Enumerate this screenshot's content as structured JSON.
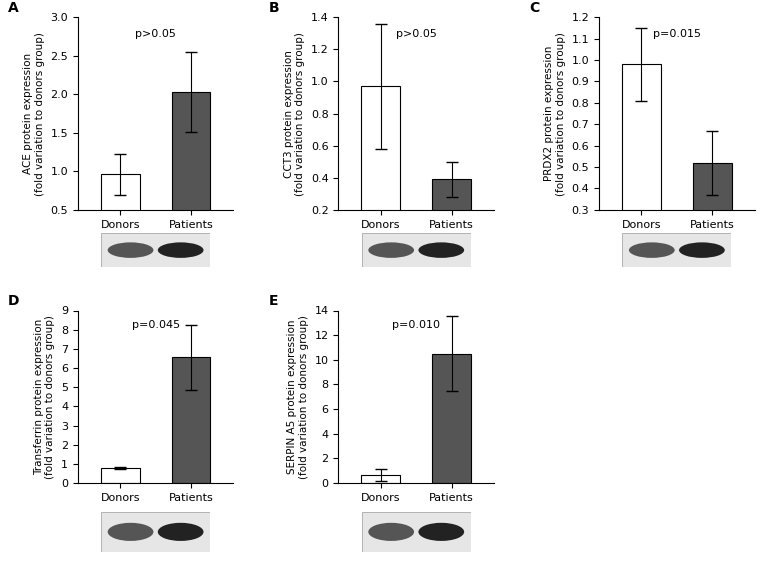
{
  "chart_data": [
    {
      "type": "bar",
      "panel_label": "A",
      "ylabel": "ACE protein expression\n(fold variation to donors group)",
      "categories": [
        "Donors",
        "Patients"
      ],
      "values": [
        0.96,
        2.03
      ],
      "errors": [
        0.27,
        0.52
      ],
      "colors": [
        "#ffffff",
        "#555555"
      ],
      "annotation": "p>0.05",
      "ylim": [
        0.5,
        3.0
      ],
      "yticks": [
        0.5,
        {
          "value": 1,
          "label": "1.0"
        },
        1.5,
        {
          "value": 2,
          "label": "2.0"
        },
        2.5,
        {
          "value": 3,
          "label": "3.0"
        }
      ]
    },
    {
      "type": "bar",
      "panel_label": "B",
      "ylabel": "CCT3 protein expression\n(fold variation to donors group)",
      "categories": [
        "Donors",
        "Patients"
      ],
      "values": [
        0.97,
        0.39
      ],
      "errors": [
        0.39,
        0.11
      ],
      "colors": [
        "#ffffff",
        "#555555"
      ],
      "annotation": "p>0.05",
      "ylim": [
        0.2,
        1.4
      ],
      "yticks": [
        0.2,
        0.4,
        0.6,
        0.8,
        {
          "value": 1,
          "label": "1.0"
        },
        1.2,
        1.4
      ]
    },
    {
      "type": "bar",
      "panel_label": "C",
      "ylabel": "PRDX2 protein expression\n(fold variation to donors group)",
      "categories": [
        "Donors",
        "Patients"
      ],
      "values": [
        0.98,
        0.52
      ],
      "errors": [
        0.17,
        0.15
      ],
      "colors": [
        "#ffffff",
        "#555555"
      ],
      "annotation": "p=0.015",
      "ylim": [
        0.3,
        1.2
      ],
      "yticks": [
        0.3,
        0.4,
        0.5,
        0.6,
        0.7,
        0.8,
        0.9,
        {
          "value": 1,
          "label": "1.0"
        },
        1.1,
        1.2
      ]
    },
    {
      "type": "bar",
      "panel_label": "D",
      "ylabel": "Transferrin protein expression\n(fold variation to donors group)",
      "categories": [
        "Donors",
        "Patients"
      ],
      "values": [
        0.78,
        6.55
      ],
      "errors": [
        0.07,
        1.68
      ],
      "colors": [
        "#ffffff",
        "#555555"
      ],
      "annotation": "p=0.045",
      "ylim": [
        0,
        9
      ],
      "yticks": [
        0,
        1,
        2,
        3,
        4,
        5,
        6,
        7,
        8,
        9
      ]
    },
    {
      "type": "bar",
      "panel_label": "E",
      "ylabel": "SERPIN A5 protein expression\n(fold variation to donors group)",
      "categories": [
        "Donors",
        "Patients"
      ],
      "values": [
        0.65,
        10.5
      ],
      "errors": [
        0.5,
        3.05
      ],
      "colors": [
        "#ffffff",
        "#555555"
      ],
      "annotation": "p=0.010",
      "ylim": [
        0,
        14
      ],
      "yticks": [
        0,
        2,
        4,
        6,
        8,
        10,
        12,
        14
      ]
    }
  ]
}
